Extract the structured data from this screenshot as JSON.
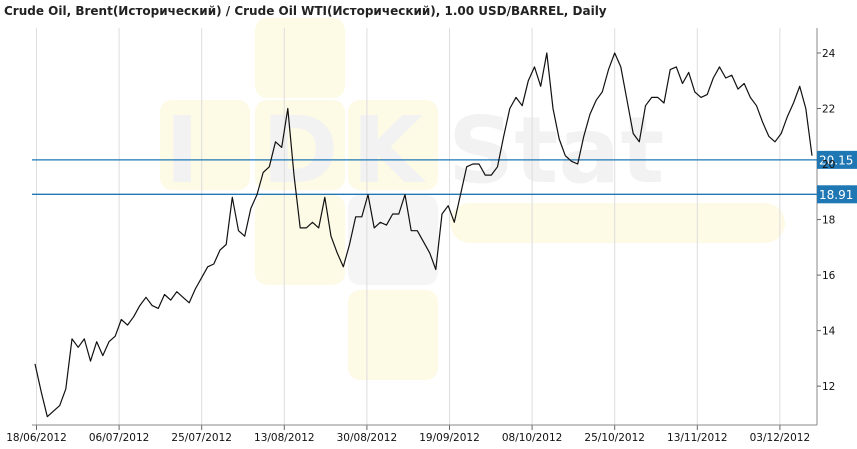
{
  "chart_data": {
    "type": "line",
    "title": "Crude Oil, Brent(Исторический) / Crude Oil WTI(Исторический), 1.00 USD/BARREL, Daily",
    "xlabel": "",
    "ylabel": "",
    "x_tick_labels": [
      "18/06/2012",
      "06/07/2012",
      "25/07/2012",
      "13/08/2012",
      "30/08/2012",
      "19/09/2012",
      "08/10/2012",
      "25/10/2012",
      "13/11/2012",
      "03/12/2012"
    ],
    "y_ticks": [
      12,
      14,
      16,
      18,
      20,
      22,
      24
    ],
    "ylim": [
      10.6,
      24.9
    ],
    "grid": "vertical",
    "series": [
      {
        "values": [
          12.8,
          11.8,
          10.9,
          11.1,
          11.3,
          11.9,
          13.7,
          13.4,
          13.7,
          12.9,
          13.6,
          13.1,
          13.6,
          13.8,
          14.4,
          14.2,
          14.5,
          14.9,
          15.2,
          14.9,
          14.8,
          15.3,
          15.1,
          15.4,
          15.2,
          15.0,
          15.5,
          15.9,
          16.3,
          16.4,
          16.9,
          17.1,
          18.8,
          17.6,
          17.4,
          18.4,
          18.9,
          19.7,
          19.9,
          20.8,
          20.6,
          22.0,
          19.6,
          17.7,
          17.7,
          17.9,
          17.7,
          18.8,
          17.4,
          16.8,
          16.3,
          17.1,
          18.1,
          18.1,
          18.9,
          17.7,
          17.9,
          17.8,
          18.2,
          18.2,
          18.9,
          17.6,
          17.6,
          17.2,
          16.8,
          16.2,
          18.2,
          18.5,
          17.9,
          18.9,
          19.9,
          20.0,
          20.0,
          19.6,
          19.6,
          19.9,
          21.0,
          22.0,
          22.4,
          22.1,
          23.0,
          23.5,
          22.8,
          24.0,
          22.0,
          20.9,
          20.3,
          20.1,
          20.0,
          21.0,
          21.8,
          22.3,
          22.6,
          23.4,
          24.0,
          23.5,
          22.3,
          21.1,
          20.8,
          22.1,
          22.4,
          22.4,
          22.2,
          23.4,
          23.5,
          22.9,
          23.3,
          22.6,
          22.4,
          22.5,
          23.1,
          23.5,
          23.1,
          23.2,
          22.7,
          22.9,
          22.4,
          22.1,
          21.5,
          21.0,
          20.8,
          21.1,
          21.7,
          22.2,
          22.8,
          22.0,
          20.3
        ]
      }
    ],
    "levels": [
      {
        "value": 20.15,
        "label": "20.15",
        "color": "#1f77b4"
      },
      {
        "value": 18.91,
        "label": "18.91",
        "color": "#1f77b4"
      }
    ],
    "line_color": "#111111",
    "grid_color": "#dddddd"
  }
}
